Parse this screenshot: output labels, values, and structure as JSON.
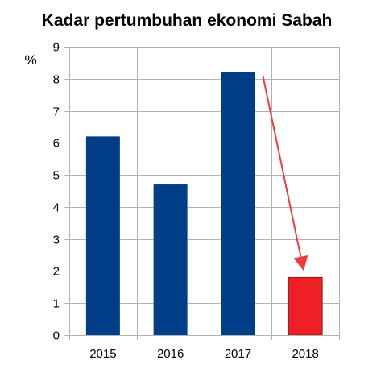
{
  "chart_data": {
    "type": "bar",
    "title": "Kadar pertumbuhan ekonomi Sabah",
    "xlabel": "",
    "ylabel": "%",
    "categories": [
      "2015",
      "2016",
      "2017",
      "2018"
    ],
    "values": [
      6.2,
      4.7,
      8.2,
      1.8
    ],
    "ylim": [
      0,
      9
    ],
    "yticks": [
      "0",
      "1",
      "2",
      "3",
      "4",
      "5",
      "6",
      "7",
      "8",
      "9"
    ],
    "grid": true,
    "legend": "none",
    "colors": {
      "bar_default": "#003f87",
      "bar_highlight": "#ee2026",
      "arrow": "#ee3b3b",
      "grid": "#b3b3b3",
      "axis": "#b3b3b3"
    },
    "highlight_index": 3,
    "annotations": [
      {
        "type": "arrow",
        "from_category": "2017",
        "from_value": 8.1,
        "to_category": "2018",
        "to_value": 1.9
      }
    ]
  }
}
